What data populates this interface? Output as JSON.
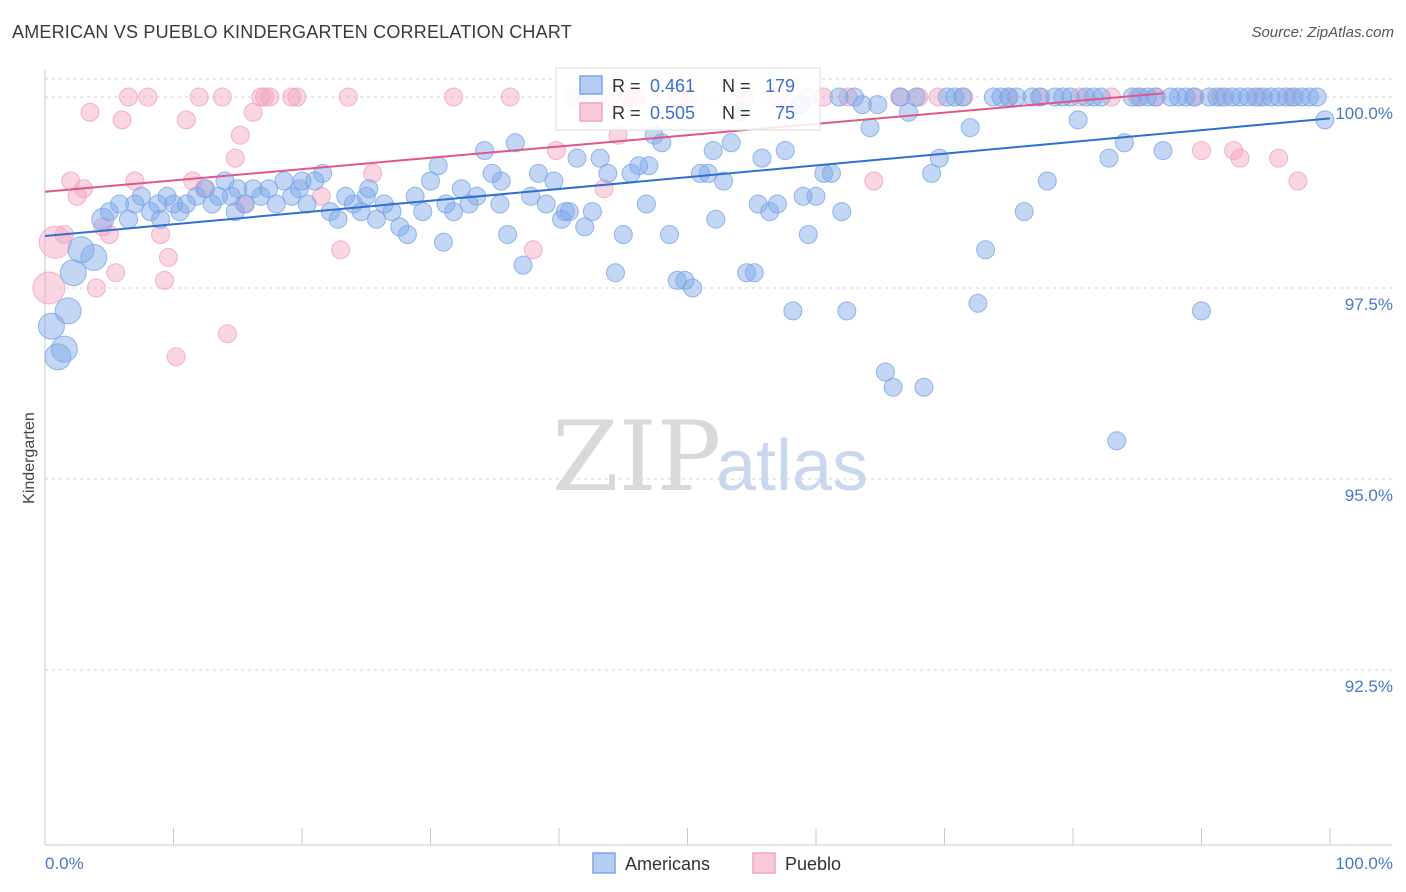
{
  "title": "AMERICAN VS PUEBLO KINDERGARTEN CORRELATION CHART",
  "source": "Source: ZipAtlas.com",
  "watermark": {
    "zip": "ZIP",
    "atlas": "atlas"
  },
  "colors": {
    "american": "#7aa6e8",
    "american_line": "#2f6fcf",
    "pueblo": "#f2a3bc",
    "pueblo_line": "#e0578a",
    "grid": "#d0d0d0",
    "axis_text": "#4a78c8"
  },
  "legend_stats": [
    {
      "r_label": "R =",
      "r_value": "0.461",
      "n_label": "N =",
      "n_value": "179"
    },
    {
      "r_label": "R =",
      "r_value": "0.505",
      "n_label": "N =",
      "n_value": "75"
    }
  ],
  "chart_data": {
    "type": "scatter",
    "title": "AMERICAN VS PUEBLO KINDERGARTEN CORRELATION CHART",
    "xlabel": "",
    "ylabel": "Kindergarten",
    "xlim": [
      0,
      100
    ],
    "ylim": [
      90.0,
      100.2
    ],
    "x_tick_labels": [
      "0.0%",
      "100.0%"
    ],
    "y_ticks": [
      92.5,
      95.0,
      97.5,
      100.0
    ],
    "y_tick_labels": [
      "92.5%",
      "95.0%",
      "97.5%",
      "100.0%"
    ],
    "legend": [
      "Americans",
      "Pueblo"
    ],
    "series": [
      {
        "name": "Americans",
        "r": 0.461,
        "n": 179,
        "trend": {
          "x0": 0,
          "y0": 98.18,
          "x1": 100,
          "y1": 99.72
        },
        "points": [
          [
            0.5,
            97.0
          ],
          [
            1.0,
            96.6
          ],
          [
            1.5,
            96.7
          ],
          [
            1.8,
            97.2
          ],
          [
            2.2,
            97.7
          ],
          [
            2.8,
            98.0
          ],
          [
            3.8,
            97.9
          ],
          [
            4.5,
            98.4
          ],
          [
            5.0,
            98.5
          ],
          [
            5.8,
            98.6
          ],
          [
            6.5,
            98.4
          ],
          [
            7.0,
            98.6
          ],
          [
            7.5,
            98.7
          ],
          [
            8.2,
            98.5
          ],
          [
            8.8,
            98.6
          ],
          [
            9.5,
            98.7
          ],
          [
            10.0,
            98.6
          ],
          [
            10.5,
            98.5
          ],
          [
            11.0,
            98.6
          ],
          [
            11.8,
            98.7
          ],
          [
            12.5,
            98.8
          ],
          [
            13.0,
            98.6
          ],
          [
            13.5,
            98.7
          ],
          [
            14.0,
            98.9
          ],
          [
            14.5,
            98.7
          ],
          [
            15.0,
            98.8
          ],
          [
            15.6,
            98.6
          ],
          [
            16.2,
            98.8
          ],
          [
            16.8,
            98.7
          ],
          [
            17.4,
            98.8
          ],
          [
            18.0,
            98.6
          ],
          [
            18.6,
            98.9
          ],
          [
            19.2,
            98.7
          ],
          [
            19.8,
            98.8
          ],
          [
            20.4,
            98.6
          ],
          [
            21.0,
            98.9
          ],
          [
            21.6,
            99.0
          ],
          [
            22.2,
            98.5
          ],
          [
            22.8,
            98.4
          ],
          [
            23.4,
            98.7
          ],
          [
            24.0,
            98.6
          ],
          [
            24.6,
            98.5
          ],
          [
            25.2,
            98.8
          ],
          [
            25.8,
            98.4
          ],
          [
            26.4,
            98.6
          ],
          [
            27.0,
            98.5
          ],
          [
            27.6,
            98.3
          ],
          [
            28.2,
            98.2
          ],
          [
            28.8,
            98.7
          ],
          [
            29.4,
            98.5
          ],
          [
            30.0,
            98.9
          ],
          [
            30.6,
            99.1
          ],
          [
            31.2,
            98.6
          ],
          [
            31.8,
            98.5
          ],
          [
            32.4,
            98.8
          ],
          [
            33.0,
            98.6
          ],
          [
            33.6,
            98.7
          ],
          [
            34.2,
            99.3
          ],
          [
            34.8,
            99.0
          ],
          [
            35.4,
            98.6
          ],
          [
            36.0,
            98.2
          ],
          [
            36.6,
            99.4
          ],
          [
            37.2,
            97.8
          ],
          [
            37.8,
            98.7
          ],
          [
            38.4,
            99.0
          ],
          [
            39.0,
            98.6
          ],
          [
            39.6,
            98.9
          ],
          [
            40.2,
            98.4
          ],
          [
            40.8,
            98.5
          ],
          [
            41.4,
            99.2
          ],
          [
            42.0,
            98.3
          ],
          [
            42.6,
            98.5
          ],
          [
            43.2,
            99.2
          ],
          [
            43.8,
            99.0
          ],
          [
            44.4,
            97.7
          ],
          [
            45.0,
            98.2
          ],
          [
            45.6,
            99.0
          ],
          [
            46.2,
            99.1
          ],
          [
            46.8,
            98.6
          ],
          [
            47.4,
            99.5
          ],
          [
            48.0,
            99.4
          ],
          [
            48.6,
            98.2
          ],
          [
            49.2,
            97.6
          ],
          [
            49.8,
            97.6
          ],
          [
            50.4,
            97.5
          ],
          [
            51.0,
            99.0
          ],
          [
            51.6,
            99.0
          ],
          [
            52.2,
            98.4
          ],
          [
            52.8,
            98.9
          ],
          [
            53.4,
            99.4
          ],
          [
            54.0,
            99.8
          ],
          [
            54.6,
            97.7
          ],
          [
            55.2,
            97.7
          ],
          [
            55.8,
            99.2
          ],
          [
            56.4,
            98.5
          ],
          [
            57.0,
            98.6
          ],
          [
            57.6,
            99.3
          ],
          [
            58.2,
            97.2
          ],
          [
            58.8,
            99.9
          ],
          [
            59.4,
            98.2
          ],
          [
            60.0,
            98.7
          ],
          [
            60.6,
            99.0
          ],
          [
            61.2,
            99.0
          ],
          [
            61.8,
            100.0
          ],
          [
            62.4,
            97.2
          ],
          [
            63.0,
            100.0
          ],
          [
            63.6,
            99.9
          ],
          [
            64.2,
            99.6
          ],
          [
            64.8,
            99.9
          ],
          [
            65.4,
            96.4
          ],
          [
            66.0,
            96.2
          ],
          [
            66.6,
            100.0
          ],
          [
            67.2,
            99.8
          ],
          [
            67.8,
            100.0
          ],
          [
            68.4,
            96.2
          ],
          [
            69.0,
            99.0
          ],
          [
            69.6,
            99.2
          ],
          [
            70.2,
            100.0
          ],
          [
            70.8,
            100.0
          ],
          [
            71.4,
            100.0
          ],
          [
            72.0,
            99.6
          ],
          [
            72.6,
            97.3
          ],
          [
            73.2,
            98.0
          ],
          [
            73.8,
            100.0
          ],
          [
            74.4,
            100.0
          ],
          [
            75.0,
            100.0
          ],
          [
            75.6,
            100.0
          ],
          [
            76.2,
            98.5
          ],
          [
            76.8,
            100.0
          ],
          [
            77.4,
            100.0
          ],
          [
            78.0,
            98.9
          ],
          [
            78.6,
            100.0
          ],
          [
            79.2,
            100.0
          ],
          [
            79.8,
            100.0
          ],
          [
            80.4,
            99.7
          ],
          [
            81.0,
            100.0
          ],
          [
            81.6,
            100.0
          ],
          [
            82.2,
            100.0
          ],
          [
            82.8,
            99.2
          ],
          [
            83.4,
            95.5
          ],
          [
            84.0,
            99.4
          ],
          [
            84.6,
            100.0
          ],
          [
            85.2,
            100.0
          ],
          [
            85.8,
            100.0
          ],
          [
            86.4,
            100.0
          ],
          [
            87.0,
            99.3
          ],
          [
            87.6,
            100.0
          ],
          [
            88.2,
            100.0
          ],
          [
            88.8,
            100.0
          ],
          [
            89.4,
            100.0
          ],
          [
            90.0,
            97.2
          ],
          [
            90.6,
            100.0
          ],
          [
            91.2,
            100.0
          ],
          [
            91.8,
            100.0
          ],
          [
            92.4,
            100.0
          ],
          [
            93.0,
            100.0
          ],
          [
            93.6,
            100.0
          ],
          [
            94.2,
            100.0
          ],
          [
            94.8,
            100.0
          ],
          [
            95.4,
            100.0
          ],
          [
            96.0,
            100.0
          ],
          [
            96.6,
            100.0
          ],
          [
            97.2,
            100.0
          ],
          [
            97.8,
            100.0
          ],
          [
            98.4,
            100.0
          ],
          [
            99.0,
            100.0
          ],
          [
            99.6,
            99.7
          ],
          [
            31.0,
            98.1
          ],
          [
            40.5,
            98.5
          ],
          [
            47.0,
            99.1
          ],
          [
            52.0,
            99.3
          ],
          [
            55.5,
            98.6
          ],
          [
            59.0,
            98.7
          ],
          [
            62.0,
            98.5
          ],
          [
            35.5,
            98.9
          ],
          [
            25.0,
            98.7
          ],
          [
            20.0,
            98.9
          ],
          [
            14.8,
            98.5
          ],
          [
            9.0,
            98.4
          ]
        ]
      },
      {
        "name": "Pueblo",
        "r": 0.505,
        "n": 75,
        "trend": {
          "x0": 0,
          "y0": 98.76,
          "x1": 100,
          "y1": 100.24
        },
        "points": [
          [
            0.3,
            97.5
          ],
          [
            0.8,
            98.1
          ],
          [
            1.5,
            98.2
          ],
          [
            2.0,
            98.9
          ],
          [
            2.5,
            98.7
          ],
          [
            3.0,
            98.8
          ],
          [
            3.5,
            99.8
          ],
          [
            4.0,
            97.5
          ],
          [
            4.5,
            98.3
          ],
          [
            5.0,
            98.2
          ],
          [
            5.5,
            97.7
          ],
          [
            6.0,
            99.7
          ],
          [
            6.5,
            100.0
          ],
          [
            7.0,
            98.9
          ],
          [
            8.0,
            100.0
          ],
          [
            9.0,
            98.2
          ],
          [
            9.3,
            97.6
          ],
          [
            9.6,
            97.9
          ],
          [
            10.2,
            96.6
          ],
          [
            11.0,
            99.7
          ],
          [
            11.5,
            98.9
          ],
          [
            12.0,
            100.0
          ],
          [
            12.4,
            98.8
          ],
          [
            13.8,
            100.0
          ],
          [
            14.2,
            96.9
          ],
          [
            14.8,
            99.2
          ],
          [
            15.2,
            99.5
          ],
          [
            15.5,
            98.6
          ],
          [
            16.2,
            99.8
          ],
          [
            16.8,
            100.0
          ],
          [
            17.1,
            100.0
          ],
          [
            17.5,
            100.0
          ],
          [
            19.2,
            100.0
          ],
          [
            19.6,
            100.0
          ],
          [
            21.5,
            98.7
          ],
          [
            23.0,
            98.0
          ],
          [
            23.6,
            100.0
          ],
          [
            25.5,
            99.0
          ],
          [
            31.8,
            100.0
          ],
          [
            36.2,
            100.0
          ],
          [
            38.0,
            98.0
          ],
          [
            39.8,
            99.3
          ],
          [
            41.2,
            100.0
          ],
          [
            43.5,
            98.8
          ],
          [
            44.0,
            100.0
          ],
          [
            44.6,
            99.5
          ],
          [
            45.4,
            100.0
          ],
          [
            46.0,
            100.0
          ],
          [
            49.2,
            100.0
          ],
          [
            50.0,
            100.0
          ],
          [
            54.5,
            100.0
          ],
          [
            57.0,
            100.0
          ],
          [
            59.4,
            100.0
          ],
          [
            60.6,
            100.0
          ],
          [
            62.5,
            100.0
          ],
          [
            64.5,
            98.9
          ],
          [
            66.5,
            100.0
          ],
          [
            68.0,
            100.0
          ],
          [
            69.5,
            100.0
          ],
          [
            71.5,
            100.0
          ],
          [
            75.0,
            100.0
          ],
          [
            77.5,
            100.0
          ],
          [
            80.5,
            100.0
          ],
          [
            83.0,
            100.0
          ],
          [
            85.0,
            100.0
          ],
          [
            86.5,
            100.0
          ],
          [
            89.5,
            100.0
          ],
          [
            90.0,
            99.3
          ],
          [
            91.5,
            100.0
          ],
          [
            92.5,
            99.3
          ],
          [
            93.0,
            99.2
          ],
          [
            94.5,
            100.0
          ],
          [
            96.0,
            99.2
          ],
          [
            97.0,
            100.0
          ],
          [
            97.5,
            98.9
          ]
        ]
      }
    ]
  }
}
